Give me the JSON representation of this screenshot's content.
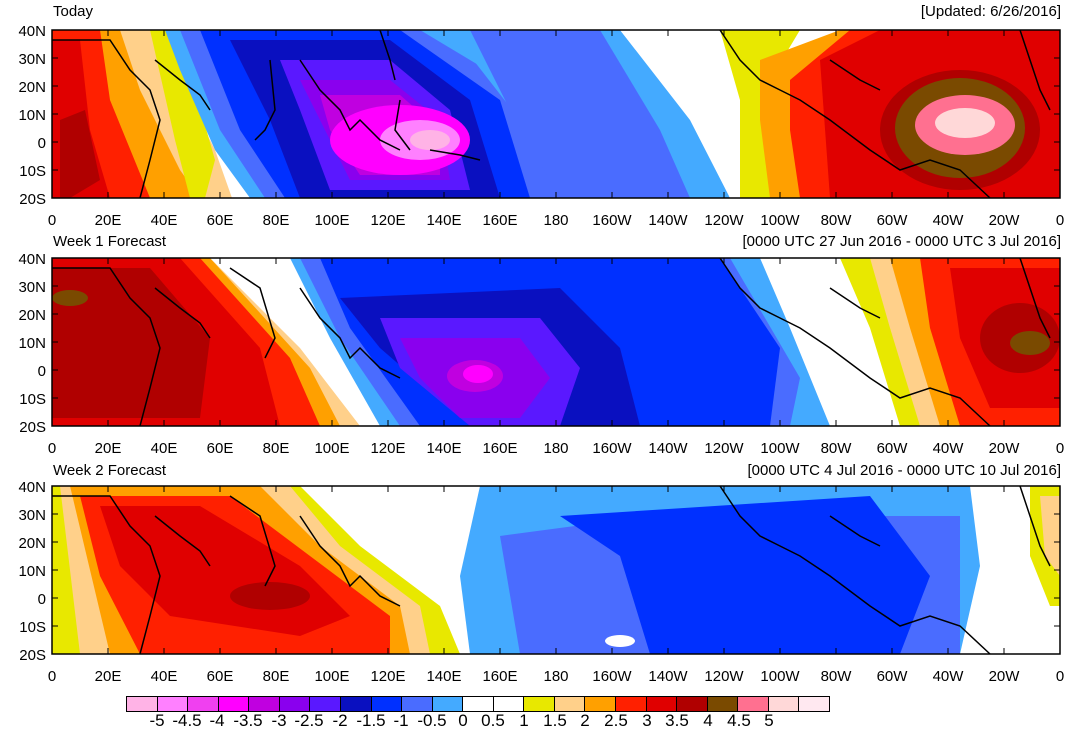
{
  "panels": [
    {
      "title": "Today",
      "subtitle": "[Updated: 6/26/2016]"
    },
    {
      "title": "Week 1 Forecast",
      "subtitle": "[0000 UTC 27 Jun 2016 - 0000 UTC 3 Jul 2016]"
    },
    {
      "title": "Week 2 Forecast",
      "subtitle": "[0000 UTC 4 Jul 2016 - 0000 UTC 10 Jul 2016]"
    }
  ],
  "lat_labels": [
    "40N",
    "30N",
    "20N",
    "10N",
    "0",
    "10S",
    "20S"
  ],
  "lon_labels": [
    "0",
    "20E",
    "40E",
    "60E",
    "80E",
    "100E",
    "120E",
    "140E",
    "160E",
    "180",
    "160W",
    "140W",
    "120W",
    "100W",
    "80W",
    "60W",
    "40W",
    "20W",
    "0"
  ],
  "legend": {
    "labels": [
      "-5",
      "-4.5",
      "-4",
      "-3.5",
      "-3",
      "-2.5",
      "-2",
      "-1.5",
      "-1",
      "-0.5",
      "0",
      "0.5",
      "1",
      "1.5",
      "2",
      "2.5",
      "3",
      "3.5",
      "4",
      "4.5",
      "5"
    ],
    "colors": [
      "#ffb3e6",
      "#ff80ff",
      "#f040f0",
      "#ff00ff",
      "#c000e0",
      "#8a00ee",
      "#5a18ff",
      "#0a10c0",
      "#0030ff",
      "#4a6cff",
      "#44aaff",
      "#ffffff",
      "#ffffff",
      "#e8e800",
      "#ffd08a",
      "#ffa000",
      "#ff2000",
      "#e00000",
      "#b00000",
      "#7a4a00",
      "#ff7090",
      "#ffd8d8",
      "#ffe8f0"
    ]
  },
  "colors": {
    "background": "#ffffff",
    "coast": "#000000"
  }
}
